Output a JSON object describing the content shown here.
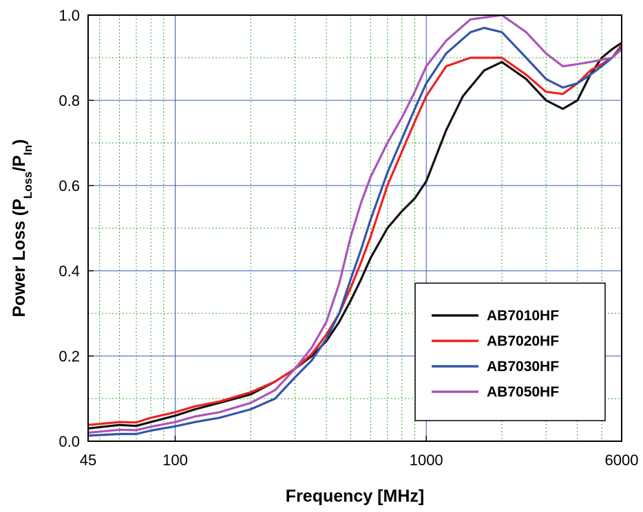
{
  "chart_data": {
    "type": "line",
    "title": "",
    "xlabel": "Frequency [MHz]",
    "ylabel": {
      "main": "Power Loss (P",
      "sub1": "Loss",
      "mid": "/P",
      "sub2": "In",
      "end": ")"
    },
    "xscale": "log",
    "xlim": [
      45,
      6000
    ],
    "ylim": [
      0,
      1.0
    ],
    "x_ticks": [
      45,
      100,
      1000,
      6000
    ],
    "x_tick_labels": [
      "45",
      "100",
      "1000",
      "6000"
    ],
    "y_ticks": [
      0,
      0.2,
      0.4,
      0.6,
      0.8,
      1.0
    ],
    "y_tick_labels": [
      "0.0",
      "0.2",
      "0.4",
      "0.6",
      "0.8",
      "1.0"
    ],
    "grid": true,
    "legend_position": "bottom-right",
    "series": [
      {
        "name": "AB7010HF",
        "color": "#111111",
        "points": [
          [
            45,
            0.03
          ],
          [
            60,
            0.038
          ],
          [
            70,
            0.036
          ],
          [
            80,
            0.045
          ],
          [
            100,
            0.06
          ],
          [
            120,
            0.075
          ],
          [
            150,
            0.09
          ],
          [
            200,
            0.11
          ],
          [
            250,
            0.14
          ],
          [
            300,
            0.17
          ],
          [
            350,
            0.2
          ],
          [
            400,
            0.235
          ],
          [
            450,
            0.28
          ],
          [
            500,
            0.33
          ],
          [
            550,
            0.38
          ],
          [
            600,
            0.43
          ],
          [
            700,
            0.5
          ],
          [
            800,
            0.54
          ],
          [
            900,
            0.57
          ],
          [
            1000,
            0.61
          ],
          [
            1200,
            0.73
          ],
          [
            1400,
            0.81
          ],
          [
            1700,
            0.87
          ],
          [
            2000,
            0.89
          ],
          [
            2500,
            0.85
          ],
          [
            3000,
            0.8
          ],
          [
            3500,
            0.78
          ],
          [
            4000,
            0.8
          ],
          [
            4500,
            0.86
          ],
          [
            5000,
            0.9
          ],
          [
            5500,
            0.92
          ],
          [
            6000,
            0.935
          ],
          [
            6500,
            0.9
          ],
          [
            7000,
            0.92
          ]
        ]
      },
      {
        "name": "AB7020HF",
        "color": "#ee2222",
        "points": [
          [
            45,
            0.038
          ],
          [
            60,
            0.045
          ],
          [
            70,
            0.044
          ],
          [
            80,
            0.055
          ],
          [
            100,
            0.068
          ],
          [
            120,
            0.082
          ],
          [
            150,
            0.093
          ],
          [
            200,
            0.115
          ],
          [
            250,
            0.14
          ],
          [
            300,
            0.17
          ],
          [
            350,
            0.205
          ],
          [
            400,
            0.25
          ],
          [
            450,
            0.3
          ],
          [
            500,
            0.36
          ],
          [
            550,
            0.42
          ],
          [
            600,
            0.48
          ],
          [
            700,
            0.6
          ],
          [
            800,
            0.68
          ],
          [
            900,
            0.75
          ],
          [
            1000,
            0.81
          ],
          [
            1200,
            0.88
          ],
          [
            1500,
            0.9
          ],
          [
            2000,
            0.9
          ],
          [
            2500,
            0.86
          ],
          [
            3000,
            0.82
          ],
          [
            3500,
            0.815
          ],
          [
            4000,
            0.84
          ],
          [
            4500,
            0.87
          ],
          [
            5000,
            0.885
          ],
          [
            5500,
            0.9
          ],
          [
            6000,
            0.93
          ],
          [
            6500,
            0.9
          ],
          [
            7000,
            0.93
          ]
        ]
      },
      {
        "name": "AB7030HF",
        "color": "#3355aa",
        "points": [
          [
            45,
            0.013
          ],
          [
            60,
            0.017
          ],
          [
            70,
            0.017
          ],
          [
            80,
            0.025
          ],
          [
            100,
            0.035
          ],
          [
            120,
            0.045
          ],
          [
            150,
            0.055
          ],
          [
            200,
            0.075
          ],
          [
            250,
            0.1
          ],
          [
            300,
            0.15
          ],
          [
            350,
            0.19
          ],
          [
            400,
            0.24
          ],
          [
            450,
            0.3
          ],
          [
            500,
            0.38
          ],
          [
            550,
            0.45
          ],
          [
            600,
            0.52
          ],
          [
            700,
            0.63
          ],
          [
            800,
            0.71
          ],
          [
            900,
            0.78
          ],
          [
            1000,
            0.84
          ],
          [
            1200,
            0.91
          ],
          [
            1500,
            0.96
          ],
          [
            1700,
            0.97
          ],
          [
            2000,
            0.96
          ],
          [
            2500,
            0.9
          ],
          [
            3000,
            0.85
          ],
          [
            3500,
            0.83
          ],
          [
            4000,
            0.84
          ],
          [
            4500,
            0.86
          ],
          [
            5000,
            0.88
          ],
          [
            5500,
            0.9
          ],
          [
            6000,
            0.925
          ],
          [
            6500,
            0.9
          ],
          [
            7000,
            0.92
          ]
        ]
      },
      {
        "name": "AB7050HF",
        "color": "#aa55bb",
        "points": [
          [
            45,
            0.02
          ],
          [
            60,
            0.027
          ],
          [
            70,
            0.026
          ],
          [
            80,
            0.034
          ],
          [
            100,
            0.045
          ],
          [
            120,
            0.058
          ],
          [
            150,
            0.068
          ],
          [
            200,
            0.09
          ],
          [
            250,
            0.12
          ],
          [
            300,
            0.17
          ],
          [
            350,
            0.22
          ],
          [
            400,
            0.28
          ],
          [
            450,
            0.37
          ],
          [
            500,
            0.48
          ],
          [
            550,
            0.56
          ],
          [
            600,
            0.62
          ],
          [
            700,
            0.7
          ],
          [
            800,
            0.76
          ],
          [
            900,
            0.82
          ],
          [
            1000,
            0.88
          ],
          [
            1200,
            0.94
          ],
          [
            1500,
            0.99
          ],
          [
            2000,
            1.0
          ],
          [
            2500,
            0.96
          ],
          [
            3000,
            0.91
          ],
          [
            3500,
            0.88
          ],
          [
            4000,
            0.885
          ],
          [
            4500,
            0.89
          ],
          [
            5000,
            0.895
          ],
          [
            5500,
            0.9
          ],
          [
            6000,
            0.92
          ],
          [
            6500,
            0.89
          ],
          [
            7000,
            0.92
          ]
        ]
      }
    ]
  }
}
